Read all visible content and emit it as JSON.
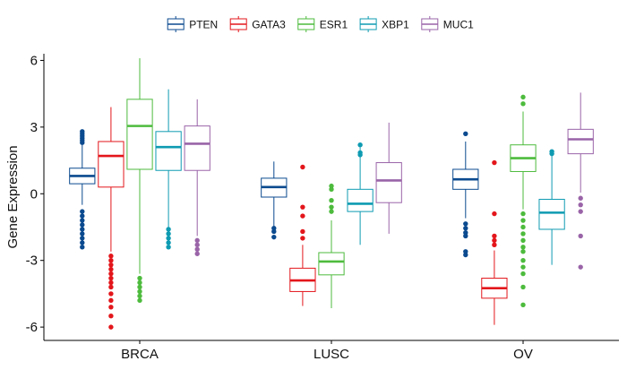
{
  "chart_data": {
    "type": "boxplot",
    "title": "",
    "xlabel": "",
    "ylabel": "Gene Expression",
    "ylim": [
      -6.6,
      6.3
    ],
    "yticks": [
      -6,
      -3,
      0,
      3,
      6
    ],
    "ytick_labels": [
      "-6",
      "-3",
      "0",
      "3",
      "6"
    ],
    "categories": [
      "BRCA",
      "LUSC",
      "OV"
    ],
    "legend_position": "top",
    "grid": false,
    "series": [
      {
        "name": "PTEN",
        "color": "#0b4a8f",
        "boxes": [
          {
            "category": "BRCA",
            "q1": 0.45,
            "median": 0.8,
            "q3": 1.15,
            "whisker_low": -0.5,
            "whisker_high": 2.2,
            "outliers": [
              2.8,
              2.7,
              2.6,
              2.5,
              2.4,
              2.3,
              -0.8,
              -1.0,
              -1.2,
              -1.4,
              -1.6,
              -1.8,
              -2.0,
              -2.2,
              -2.4
            ]
          },
          {
            "category": "LUSC",
            "q1": -0.15,
            "median": 0.3,
            "q3": 0.7,
            "whisker_low": -1.45,
            "whisker_high": 1.45,
            "outliers": [
              -1.55,
              -1.7,
              -1.95
            ]
          },
          {
            "category": "OV",
            "q1": 0.2,
            "median": 0.65,
            "q3": 1.1,
            "whisker_low": -1.1,
            "whisker_high": 2.35,
            "outliers": [
              2.7,
              -1.35,
              -1.55,
              -1.75,
              -1.9,
              -2.6,
              -2.75
            ]
          }
        ]
      },
      {
        "name": "GATA3",
        "color": "#e3161b",
        "boxes": [
          {
            "category": "BRCA",
            "q1": 0.3,
            "median": 1.7,
            "q3": 2.35,
            "whisker_low": -2.6,
            "whisker_high": 3.9,
            "outliers": [
              -2.8,
              -3.0,
              -3.2,
              -3.4,
              -3.6,
              -3.8,
              -4.0,
              -4.2,
              -4.5,
              -4.8,
              -5.1,
              -5.5,
              -6.0
            ]
          },
          {
            "category": "LUSC",
            "q1": -4.4,
            "median": -3.9,
            "q3": -3.35,
            "whisker_low": -5.05,
            "whisker_high": -2.3,
            "outliers": [
              1.2,
              -0.6,
              -1.0,
              -1.7,
              -2.0
            ]
          },
          {
            "category": "OV",
            "q1": -4.7,
            "median": -4.25,
            "q3": -3.8,
            "whisker_low": -5.9,
            "whisker_high": -2.55,
            "outliers": [
              1.4,
              -0.9,
              -1.9,
              -2.1,
              -2.3
            ]
          }
        ]
      },
      {
        "name": "ESR1",
        "color": "#4dbb3d",
        "boxes": [
          {
            "category": "BRCA",
            "q1": 1.1,
            "median": 3.05,
            "q3": 4.25,
            "whisker_low": -3.6,
            "whisker_high": 6.1,
            "outliers": [
              -3.8,
              -4.0,
              -4.2,
              -4.4,
              -4.6,
              -4.8
            ]
          },
          {
            "category": "LUSC",
            "q1": -3.65,
            "median": -3.05,
            "q3": -2.65,
            "whisker_low": -5.15,
            "whisker_high": -1.2,
            "outliers": [
              0.35,
              0.2,
              -0.3,
              -0.6,
              -0.8
            ]
          },
          {
            "category": "OV",
            "q1": 1.0,
            "median": 1.6,
            "q3": 2.2,
            "whisker_low": -0.7,
            "whisker_high": 3.7,
            "outliers": [
              4.35,
              4.05,
              -0.9,
              -1.2,
              -1.5,
              -1.8,
              -2.1,
              -2.4,
              -2.6,
              -3.0,
              -3.3,
              -3.6,
              -4.2,
              -5.0
            ]
          }
        ]
      },
      {
        "name": "XBP1",
        "color": "#0e9bb2",
        "boxes": [
          {
            "category": "BRCA",
            "q1": 1.05,
            "median": 2.1,
            "q3": 2.8,
            "whisker_low": -1.5,
            "whisker_high": 4.7,
            "outliers": [
              -1.6,
              -1.8,
              -2.0,
              -2.2,
              -2.4
            ]
          },
          {
            "category": "LUSC",
            "q1": -0.8,
            "median": -0.45,
            "q3": 0.2,
            "whisker_low": -2.3,
            "whisker_high": 2.1,
            "outliers": [
              2.2,
              1.85,
              1.75
            ]
          },
          {
            "category": "OV",
            "q1": -1.6,
            "median": -0.85,
            "q3": -0.25,
            "whisker_low": -3.2,
            "whisker_high": 1.7,
            "outliers": [
              1.9,
              1.8
            ]
          }
        ]
      },
      {
        "name": "MUC1",
        "color": "#9a64a8",
        "boxes": [
          {
            "category": "BRCA",
            "q1": 1.05,
            "median": 2.25,
            "q3": 3.05,
            "whisker_low": -1.9,
            "whisker_high": 4.25,
            "outliers": [
              -2.1,
              -2.3,
              -2.5,
              -2.7
            ]
          },
          {
            "category": "LUSC",
            "q1": -0.4,
            "median": 0.6,
            "q3": 1.4,
            "whisker_low": -1.8,
            "whisker_high": 3.2,
            "outliers": []
          },
          {
            "category": "OV",
            "q1": 1.8,
            "median": 2.45,
            "q3": 2.9,
            "whisker_low": 0.05,
            "whisker_high": 4.55,
            "outliers": [
              -0.2,
              -0.5,
              -0.8,
              -1.9,
              -3.3
            ]
          }
        ]
      }
    ]
  }
}
